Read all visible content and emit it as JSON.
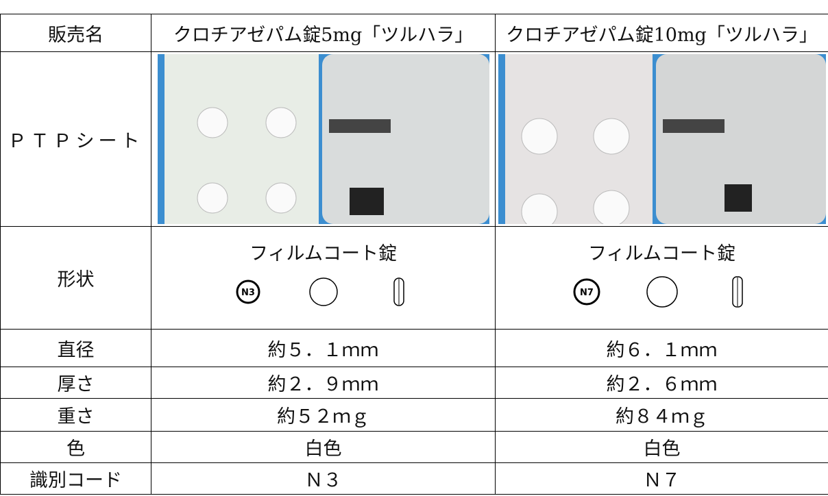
{
  "table": {
    "header": [
      "販売名",
      "クロチアゼパム錠5mg「ツルハラ」",
      "クロチアゼパム錠10mg「ツルハラ」"
    ],
    "rows": [
      [
        "ＰＴＰシート"
      ],
      [
        "形状",
        "フィルムコート錠",
        "フィルムコート錠"
      ],
      [
        "直径",
        "約５．１ｍｍ",
        "約６．１ｍｍ"
      ],
      [
        "厚さ",
        "約２．９ｍｍ",
        "約２．６ｍｍ"
      ],
      [
        "重さ",
        "約５２ｍｇ",
        "約８４ｍｇ"
      ],
      [
        "色",
        "白色",
        "白色"
      ],
      [
        "識別コード",
        "Ｎ３",
        "Ｎ７"
      ]
    ],
    "imprints": [
      "N3",
      "N7"
    ]
  }
}
